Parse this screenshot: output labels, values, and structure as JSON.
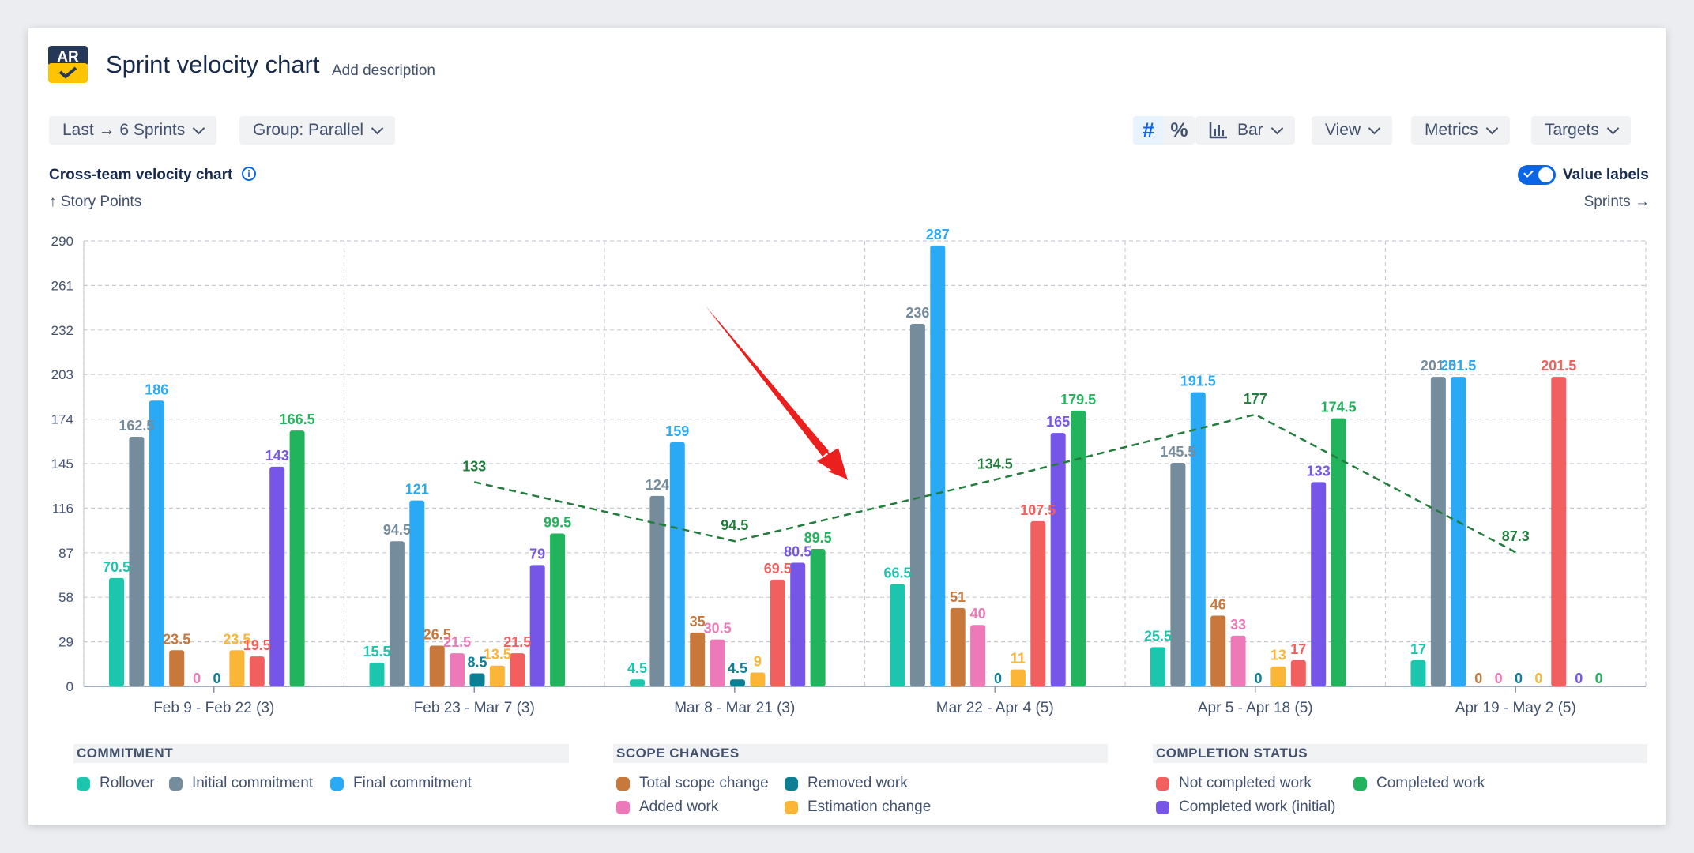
{
  "header": {
    "title": "Sprint velocity chart",
    "add_description": "Add description",
    "logo_text": "AR"
  },
  "toolbar": {
    "sprints_label": "Last → 6 Sprints",
    "group_label": "Group: Parallel",
    "hash_symbol": "#",
    "percent_symbol": "%",
    "bar_label": "Bar",
    "view_label": "View",
    "metrics_label": "Metrics",
    "targets_label": "Targets"
  },
  "chart_header": {
    "title": "Cross-team velocity chart",
    "info_symbol": "i",
    "y_label": "↑ Story Points",
    "x_label": "Sprints →",
    "value_labels": "Value labels"
  },
  "colors": {
    "rollover": "#1cc6ad",
    "initial": "#758c9c",
    "final": "#2aa9f5",
    "total_scope": "#c8783a",
    "removed": "#0d7f94",
    "added": "#ee79b8",
    "estimation": "#fbb637",
    "not_completed": "#f25f5f",
    "completed_initial": "#7556e6",
    "completed": "#22b45c",
    "trend": "#227d3d",
    "arrow": "#ec1f1f"
  },
  "chart_data": {
    "type": "bar",
    "y_ticks": [
      0,
      29,
      58,
      87,
      116,
      145,
      174,
      203,
      232,
      261,
      290
    ],
    "ylim": [
      0,
      290
    ],
    "grid": true,
    "categories": [
      "Feb 9 - Feb 22 (3)",
      "Feb 23 - Mar 7 (3)",
      "Mar 8 - Mar 21 (3)",
      "Mar 22 - Apr 4 (5)",
      "Apr 5 - Apr 18 (5)",
      "Apr 19 - May 2 (5)"
    ],
    "series": [
      {
        "name": "Rollover",
        "key": "rollover",
        "values": [
          70.5,
          15.5,
          4.5,
          66.5,
          25.5,
          17
        ]
      },
      {
        "name": "Initial commitment",
        "key": "initial",
        "values": [
          162.5,
          94.5,
          124,
          236,
          145.5,
          201.5
        ]
      },
      {
        "name": "Final commitment",
        "key": "final",
        "values": [
          186,
          121,
          159,
          287,
          191.5,
          201.5
        ]
      },
      {
        "name": "Total scope change",
        "key": "total_scope",
        "values": [
          23.5,
          26.5,
          35,
          51,
          46,
          0
        ]
      },
      {
        "name": "Added work",
        "key": "added",
        "values": [
          0,
          21.5,
          30.5,
          40,
          33,
          0
        ]
      },
      {
        "name": "Removed work",
        "key": "removed",
        "values": [
          0,
          8.5,
          4.5,
          0,
          0,
          0
        ]
      },
      {
        "name": "Estimation change",
        "key": "estimation",
        "values": [
          23.5,
          13.5,
          9,
          11,
          13,
          0
        ]
      },
      {
        "name": "Not completed work",
        "key": "not_completed",
        "values": [
          19.5,
          21.5,
          69.5,
          107.5,
          17,
          201.5
        ]
      },
      {
        "name": "Completed work (initial)",
        "key": "completed_initial",
        "values": [
          143,
          79,
          80.5,
          165,
          133,
          0
        ]
      },
      {
        "name": "Completed work",
        "key": "completed",
        "values": [
          166.5,
          99.5,
          89.5,
          179.5,
          174.5,
          0
        ]
      }
    ],
    "trend": {
      "points": [
        {
          "sprint": 1,
          "value": 133
        },
        {
          "sprint": 2,
          "value": 94.5
        },
        {
          "sprint": 3,
          "value": 134.5
        },
        {
          "sprint": 4,
          "value": 177
        },
        {
          "sprint": 5,
          "value": 87.3
        }
      ]
    }
  },
  "legend": {
    "commitment_title": "COMMITMENT",
    "scope_title": "SCOPE CHANGES",
    "completion_title": "COMPLETION STATUS",
    "rollover": "Rollover",
    "initial": "Initial commitment",
    "final": "Final commitment",
    "total_scope": "Total scope change",
    "removed": "Removed work",
    "added": "Added work",
    "estimation": "Estimation change",
    "not_completed": "Not completed work",
    "completed": "Completed work",
    "completed_initial": "Completed work (initial)"
  }
}
